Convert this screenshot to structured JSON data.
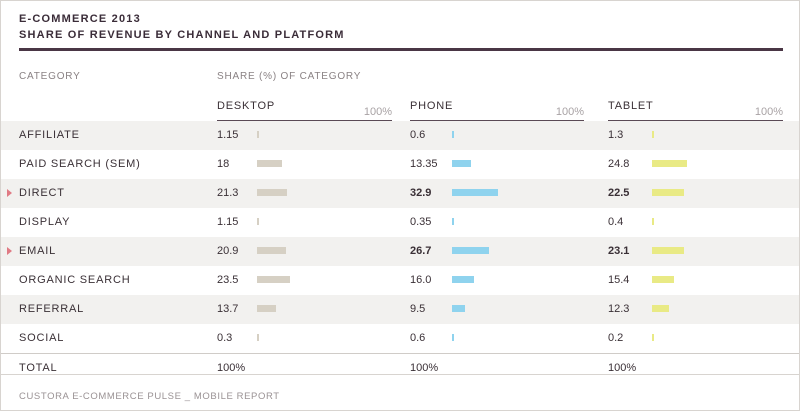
{
  "header": {
    "title_line1": "E-COMMERCE 2013",
    "title_line2": "SHARE OF REVENUE BY CHANNEL AND PLATFORM",
    "category_label": "CATEGORY",
    "share_label": "SHARE (%) OF CATEGORY",
    "max_label": "100%"
  },
  "colors": {
    "desktop": "#d6d0c4",
    "phone": "#8fd3ee",
    "tablet": "#e9ea85",
    "marker": "#e07a84",
    "rule": "#4a3645",
    "shade": "#f2f1ef"
  },
  "chart_data": {
    "type": "table",
    "title": "E-COMMERCE 2013",
    "subtitle": "SHARE OF REVENUE BY CHANNEL AND PLATFORM",
    "value_range": [
      0,
      100
    ],
    "platforms": [
      "DESKTOP",
      "PHONE",
      "TABLET"
    ],
    "rows": [
      {
        "category": "AFFILIATE",
        "highlight": false,
        "values": [
          "1.15",
          "0.6",
          "1.3"
        ],
        "bold": [
          false,
          false,
          false
        ]
      },
      {
        "category": "PAID SEARCH (SEM)",
        "highlight": false,
        "values": [
          "18",
          "13.35",
          "24.8"
        ],
        "bold": [
          false,
          false,
          false
        ]
      },
      {
        "category": "DIRECT",
        "highlight": true,
        "values": [
          "21.3",
          "32.9",
          "22.5"
        ],
        "bold": [
          false,
          true,
          true
        ]
      },
      {
        "category": "DISPLAY",
        "highlight": false,
        "values": [
          "1.15",
          "0.35",
          "0.4"
        ],
        "bold": [
          false,
          false,
          false
        ]
      },
      {
        "category": "EMAIL",
        "highlight": true,
        "values": [
          "20.9",
          "26.7",
          "23.1"
        ],
        "bold": [
          false,
          true,
          true
        ]
      },
      {
        "category": "ORGANIC SEARCH",
        "highlight": false,
        "values": [
          "23.5",
          "16.0",
          "15.4"
        ],
        "bold": [
          false,
          false,
          false
        ]
      },
      {
        "category": "REFERRAL",
        "highlight": false,
        "values": [
          "13.7",
          "9.5",
          "12.3"
        ],
        "bold": [
          false,
          false,
          false
        ]
      },
      {
        "category": "SOCIAL",
        "highlight": false,
        "values": [
          "0.3",
          "0.6",
          "0.2"
        ],
        "bold": [
          false,
          false,
          false
        ]
      }
    ],
    "total": {
      "category": "TOTAL",
      "values": [
        "100%",
        "100%",
        "100%"
      ]
    }
  },
  "footer": "CUSTORA E-COMMERCE PULSE _ MOBILE REPORT"
}
